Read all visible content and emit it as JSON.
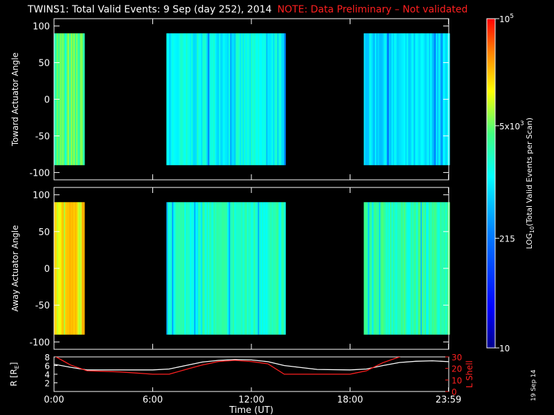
{
  "title": "TWINS1: Total Valid Events:  9 Sep (day 252), 2014",
  "note": "NOTE: Data Preliminary – Not validated",
  "side_stamp": "19 Sep 14",
  "colorbar": {
    "label": "LOG10(Total Valid Events per Scan)",
    "label_parts": [
      "LOG",
      "10",
      "(Total Valid Events per Scan)"
    ],
    "ticks": [
      {
        "value": 100000,
        "parts": [
          "10",
          "5"
        ]
      },
      {
        "value": 5000,
        "parts": [
          "5x10",
          "3"
        ]
      },
      {
        "value": 215,
        "parts": [
          "215",
          ""
        ]
      },
      {
        "value": 10,
        "parts": [
          "10",
          ""
        ]
      }
    ],
    "range": [
      10,
      100000
    ],
    "scale": "log"
  },
  "chart_data": [
    {
      "type": "heatmap",
      "ylabel": "Toward Actuator Angle",
      "ylim": [
        -110,
        110
      ],
      "y_ticks": [
        "100",
        "50",
        "0",
        "-50",
        "-100"
      ],
      "x_ticks": [
        "0:00",
        "6:00",
        "12:00",
        "18:00",
        "23:59"
      ],
      "angle_range": [
        -90,
        90
      ],
      "data_blocks": [
        {
          "start": "0:00",
          "end": "1:50",
          "level_log10": 3.6
        },
        {
          "start": "6:50",
          "end": "14:00",
          "level_log10": 3.1
        },
        {
          "start": "18:50",
          "end": "23:59",
          "level_log10": 2.9
        }
      ]
    },
    {
      "type": "heatmap",
      "ylabel": "Away Actuator Angle",
      "ylim": [
        -110,
        110
      ],
      "y_ticks": [
        "100",
        "50",
        "0",
        "-50",
        "-100"
      ],
      "x_ticks": [
        "0:00",
        "6:00",
        "12:00",
        "18:00",
        "23:59"
      ],
      "angle_range": [
        -90,
        90
      ],
      "data_blocks": [
        {
          "start": "0:00",
          "end": "1:50",
          "level_log10": 4.2
        },
        {
          "start": "6:50",
          "end": "14:00",
          "level_log10": 3.3
        },
        {
          "start": "18:50",
          "end": "23:59",
          "level_log10": 3.4
        }
      ]
    },
    {
      "type": "line",
      "xlabel": "Time (UT)",
      "x_ticks": [
        "0:00",
        "6:00",
        "12:00",
        "18:00",
        "23:59"
      ],
      "ylabel_left": "R [RE]",
      "ylabel_left_parts": [
        "R [R",
        "E",
        "]"
      ],
      "y_left_ticks": [
        "8",
        "6",
        "4",
        "2"
      ],
      "ylim_left": [
        0,
        8
      ],
      "ylabel_right": "L Shell",
      "y_right_ticks": [
        "30",
        "20",
        "10",
        "0"
      ],
      "ylim_right": [
        0,
        30
      ],
      "series": [
        {
          "name": "R [RE]",
          "color": "#ffffff",
          "x": [
            "0:00",
            "1:00",
            "2:00",
            "4:00",
            "6:00",
            "7:00",
            "8:00",
            "9:00",
            "10:00",
            "11:00",
            "12:00",
            "13:00",
            "14:00",
            "16:00",
            "18:00",
            "19:00",
            "20:00",
            "21:00",
            "22:00",
            "23:00",
            "23:59"
          ],
          "y": [
            6.3,
            5.6,
            5.0,
            5.0,
            5.0,
            5.2,
            6.0,
            6.8,
            7.2,
            7.4,
            7.3,
            6.9,
            6.0,
            5.1,
            5.0,
            5.2,
            6.0,
            6.7,
            7.0,
            7.1,
            6.9
          ]
        },
        {
          "name": "L Shell",
          "color": "#ff2020",
          "x": [
            "0:00",
            "0:30",
            "1:00",
            "2:00",
            "4:00",
            "6:00",
            "7:00",
            "8:00",
            "9:00",
            "10:00",
            "11:00",
            "12:00",
            "13:00",
            "14:00",
            "16:00",
            "18:00",
            "19:00",
            "20:00",
            "21:00",
            "22:00"
          ],
          "y": [
            31,
            27,
            23,
            18,
            17,
            15,
            15,
            19,
            23,
            26,
            27,
            26,
            24,
            15,
            15,
            15,
            18,
            25,
            30,
            36
          ]
        }
      ]
    }
  ]
}
